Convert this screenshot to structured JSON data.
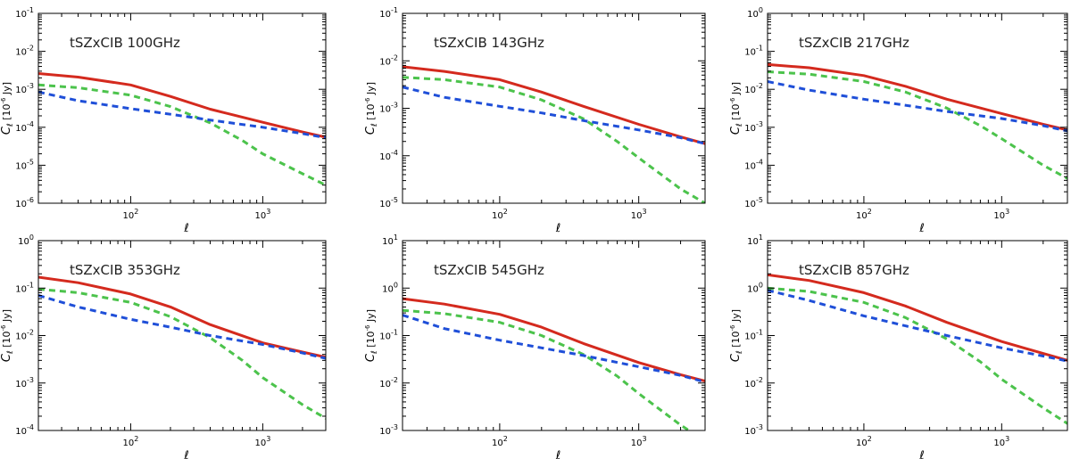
{
  "colors": {
    "total": "#d42a1e",
    "component_green": "#4cc34c",
    "component_blue": "#1f4fd8",
    "axis": "#000000"
  },
  "legend": [],
  "chart_data": [
    {
      "type": "line",
      "title": "tSZxCIB 100GHz",
      "xlabel": "ℓ",
      "ylabel": "C_ℓ [10^-6 Jy]",
      "xscale": "log",
      "yscale": "log",
      "xlim": [
        20,
        3000
      ],
      "ylim_exp": [
        -6,
        -1
      ],
      "x_ticks": [
        {
          "value": 100,
          "base": "10",
          "exp": "2"
        },
        {
          "value": 1000,
          "base": "10",
          "exp": "3"
        }
      ],
      "y_ticks": [
        {
          "base": "10",
          "exp": "-6"
        },
        {
          "base": "10",
          "exp": "-5"
        },
        {
          "base": "10",
          "exp": "-4"
        },
        {
          "base": "10",
          "exp": "-3"
        },
        {
          "base": "10",
          "exp": "-2"
        },
        {
          "base": "10",
          "exp": "-1"
        }
      ],
      "series": [
        {
          "name": "total",
          "style": "solid",
          "color": "#d42a1e",
          "x": [
            20,
            40,
            100,
            200,
            400,
            1000,
            2000,
            3000
          ],
          "y": [
            0.0026,
            0.0021,
            0.0013,
            0.00065,
            0.0003,
            0.000135,
            7.5e-05,
            5.5e-05
          ]
        },
        {
          "name": "component-green",
          "style": "dashed",
          "color": "#4cc34c",
          "x": [
            20,
            40,
            100,
            200,
            400,
            700,
            1000,
            2000,
            3000
          ],
          "y": [
            0.0013,
            0.0011,
            0.0007,
            0.00035,
            0.00013,
            4.5e-05,
            2e-05,
            6e-06,
            3e-06
          ]
        },
        {
          "name": "component-blue",
          "style": "dashed",
          "color": "#1f4fd8",
          "x": [
            20,
            40,
            100,
            200,
            400,
            1000,
            2000,
            3000
          ],
          "y": [
            0.00085,
            0.0005,
            0.00031,
            0.00022,
            0.000155,
            0.0001,
            6.8e-05,
            5.3e-05
          ]
        }
      ]
    },
    {
      "type": "line",
      "title": "tSZxCIB 143GHz",
      "xlabel": "ℓ",
      "ylabel": "C_ℓ [10^-6 Jy]",
      "xscale": "log",
      "yscale": "log",
      "xlim": [
        20,
        3000
      ],
      "ylim_exp": [
        -5,
        -1
      ],
      "x_ticks": [
        {
          "value": 100,
          "base": "10",
          "exp": "2"
        },
        {
          "value": 1000,
          "base": "10",
          "exp": "3"
        }
      ],
      "y_ticks": [
        {
          "base": "10",
          "exp": "-5"
        },
        {
          "base": "10",
          "exp": "-4"
        },
        {
          "base": "10",
          "exp": "-3"
        },
        {
          "base": "10",
          "exp": "-2"
        },
        {
          "base": "10",
          "exp": "-1"
        }
      ],
      "series": [
        {
          "name": "total",
          "style": "solid",
          "color": "#d42a1e",
          "x": [
            20,
            40,
            100,
            200,
            400,
            1000,
            2000,
            3000
          ],
          "y": [
            0.0075,
            0.006,
            0.004,
            0.0022,
            0.0011,
            0.00046,
            0.00025,
            0.00018
          ]
        },
        {
          "name": "component-green",
          "style": "dashed",
          "color": "#4cc34c",
          "x": [
            20,
            40,
            100,
            200,
            400,
            700,
            1000,
            2000,
            3000
          ],
          "y": [
            0.0045,
            0.004,
            0.0028,
            0.0015,
            0.0006,
            0.0002,
            9e-05,
            2e-05,
            1e-05
          ]
        },
        {
          "name": "component-blue",
          "style": "dashed",
          "color": "#1f4fd8",
          "x": [
            20,
            40,
            100,
            200,
            400,
            1000,
            2000,
            3000
          ],
          "y": [
            0.0028,
            0.0017,
            0.0011,
            0.0008,
            0.00055,
            0.00035,
            0.00024,
            0.00018
          ]
        }
      ]
    },
    {
      "type": "line",
      "title": "tSZxCIB 217GHz",
      "xlabel": "ℓ",
      "ylabel": "C_ℓ [10^-6 Jy]",
      "xscale": "log",
      "yscale": "log",
      "xlim": [
        20,
        3000
      ],
      "ylim_exp": [
        -5,
        0
      ],
      "x_ticks": [
        {
          "value": 100,
          "base": "10",
          "exp": "2"
        },
        {
          "value": 1000,
          "base": "10",
          "exp": "3"
        }
      ],
      "y_ticks": [
        {
          "base": "10",
          "exp": "-5"
        },
        {
          "base": "10",
          "exp": "-4"
        },
        {
          "base": "10",
          "exp": "-3"
        },
        {
          "base": "10",
          "exp": "-2"
        },
        {
          "base": "10",
          "exp": "-1"
        },
        {
          "base": "10",
          "exp": "0"
        }
      ],
      "series": [
        {
          "name": "total",
          "style": "solid",
          "color": "#d42a1e",
          "x": [
            20,
            40,
            100,
            200,
            400,
            1000,
            2000,
            3000
          ],
          "y": [
            0.045,
            0.037,
            0.023,
            0.012,
            0.0055,
            0.0023,
            0.0012,
            0.00085
          ]
        },
        {
          "name": "component-green",
          "style": "dashed",
          "color": "#4cc34c",
          "x": [
            20,
            40,
            100,
            200,
            400,
            700,
            1000,
            2000,
            3000
          ],
          "y": [
            0.029,
            0.025,
            0.016,
            0.0085,
            0.0032,
            0.0011,
            0.0005,
            0.0001,
            4.5e-05
          ]
        },
        {
          "name": "component-blue",
          "style": "dashed",
          "color": "#1f4fd8",
          "x": [
            20,
            40,
            100,
            200,
            400,
            1000,
            2000,
            3000
          ],
          "y": [
            0.016,
            0.0095,
            0.0055,
            0.0038,
            0.0026,
            0.0017,
            0.0011,
            0.0008
          ]
        }
      ]
    },
    {
      "type": "line",
      "title": "tSZxCIB 353GHz",
      "xlabel": "ℓ",
      "ylabel": "C_ℓ [10^-6 Jy]",
      "xscale": "log",
      "yscale": "log",
      "xlim": [
        20,
        3000
      ],
      "ylim_exp": [
        -4,
        0
      ],
      "x_ticks": [
        {
          "value": 100,
          "base": "10",
          "exp": "2"
        },
        {
          "value": 1000,
          "base": "10",
          "exp": "3"
        }
      ],
      "y_ticks": [
        {
          "base": "10",
          "exp": "-4"
        },
        {
          "base": "10",
          "exp": "-3"
        },
        {
          "base": "10",
          "exp": "-2"
        },
        {
          "base": "10",
          "exp": "-1"
        },
        {
          "base": "10",
          "exp": "0"
        }
      ],
      "series": [
        {
          "name": "total",
          "style": "solid",
          "color": "#d42a1e",
          "x": [
            20,
            40,
            100,
            200,
            400,
            1000,
            2000,
            3000
          ],
          "y": [
            0.17,
            0.13,
            0.075,
            0.04,
            0.017,
            0.007,
            0.0045,
            0.0035
          ]
        },
        {
          "name": "component-green",
          "style": "dashed",
          "color": "#4cc34c",
          "x": [
            20,
            40,
            100,
            200,
            400,
            700,
            1000,
            2000,
            3000
          ],
          "y": [
            0.095,
            0.08,
            0.05,
            0.025,
            0.009,
            0.003,
            0.0013,
            0.00035,
            0.00018
          ]
        },
        {
          "name": "component-blue",
          "style": "dashed",
          "color": "#1f4fd8",
          "x": [
            20,
            40,
            100,
            200,
            400,
            1000,
            2000,
            3000
          ],
          "y": [
            0.07,
            0.04,
            0.022,
            0.015,
            0.01,
            0.0065,
            0.0043,
            0.0033
          ]
        }
      ]
    },
    {
      "type": "line",
      "title": "tSZxCIB 545GHz",
      "xlabel": "ℓ",
      "ylabel": "C_ℓ [10^-6 Jy]",
      "xscale": "log",
      "yscale": "log",
      "xlim": [
        20,
        3000
      ],
      "ylim_exp": [
        -3,
        1
      ],
      "x_ticks": [
        {
          "value": 100,
          "base": "10",
          "exp": "2"
        },
        {
          "value": 1000,
          "base": "10",
          "exp": "3"
        }
      ],
      "y_ticks": [
        {
          "base": "10",
          "exp": "-3"
        },
        {
          "base": "10",
          "exp": "-2"
        },
        {
          "base": "10",
          "exp": "-1"
        },
        {
          "base": "10",
          "exp": "0"
        },
        {
          "base": "10",
          "exp": "1"
        }
      ],
      "series": [
        {
          "name": "total",
          "style": "solid",
          "color": "#d42a1e",
          "x": [
            20,
            40,
            100,
            200,
            400,
            1000,
            2000,
            3000
          ],
          "y": [
            0.6,
            0.46,
            0.28,
            0.15,
            0.068,
            0.027,
            0.015,
            0.011
          ]
        },
        {
          "name": "component-green",
          "style": "dashed",
          "color": "#4cc34c",
          "x": [
            20,
            40,
            100,
            200,
            400,
            700,
            1000,
            2000,
            2300
          ],
          "y": [
            0.34,
            0.29,
            0.19,
            0.1,
            0.04,
            0.014,
            0.006,
            0.0013,
            0.001
          ]
        },
        {
          "name": "component-blue",
          "style": "dashed",
          "color": "#1f4fd8",
          "x": [
            20,
            40,
            100,
            200,
            400,
            1000,
            2000,
            3000
          ],
          "y": [
            0.27,
            0.14,
            0.08,
            0.055,
            0.038,
            0.022,
            0.0145,
            0.0105
          ]
        }
      ]
    },
    {
      "type": "line",
      "title": "tSZxCIB 857GHz",
      "xlabel": "ℓ",
      "ylabel": "C_ℓ [10^-6 Jy]",
      "xscale": "log",
      "yscale": "log",
      "xlim": [
        20,
        3000
      ],
      "ylim_exp": [
        -3,
        1
      ],
      "x_ticks": [
        {
          "value": 100,
          "base": "10",
          "exp": "2"
        },
        {
          "value": 1000,
          "base": "10",
          "exp": "3"
        }
      ],
      "y_ticks": [
        {
          "base": "10",
          "exp": "-3"
        },
        {
          "base": "10",
          "exp": "-2"
        },
        {
          "base": "10",
          "exp": "-1"
        },
        {
          "base": "10",
          "exp": "0"
        },
        {
          "base": "10",
          "exp": "1"
        }
      ],
      "series": [
        {
          "name": "total",
          "style": "solid",
          "color": "#d42a1e",
          "x": [
            20,
            40,
            100,
            200,
            400,
            1000,
            2000,
            3000
          ],
          "y": [
            1.9,
            1.45,
            0.8,
            0.42,
            0.19,
            0.075,
            0.042,
            0.03
          ]
        },
        {
          "name": "component-green",
          "style": "dashed",
          "color": "#4cc34c",
          "x": [
            20,
            40,
            100,
            200,
            400,
            700,
            1000,
            2000,
            3000
          ],
          "y": [
            1.0,
            0.85,
            0.5,
            0.24,
            0.085,
            0.028,
            0.012,
            0.003,
            0.0014
          ]
        },
        {
          "name": "component-blue",
          "style": "dashed",
          "color": "#1f4fd8",
          "x": [
            20,
            40,
            100,
            200,
            400,
            1000,
            2000,
            3000
          ],
          "y": [
            0.9,
            0.55,
            0.26,
            0.16,
            0.1,
            0.055,
            0.037,
            0.029
          ]
        }
      ]
    }
  ]
}
